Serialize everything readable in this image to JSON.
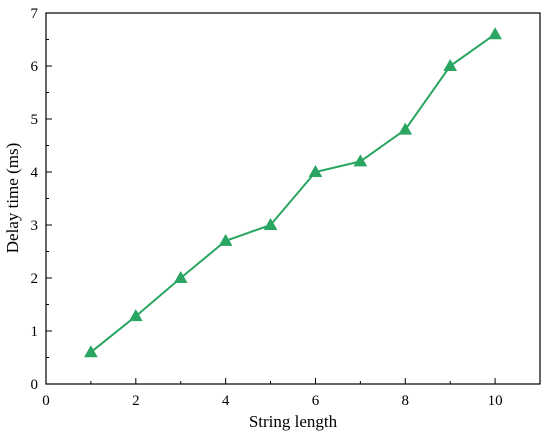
{
  "chart_data": {
    "type": "line",
    "xlabel": "String length",
    "ylabel": "Delay time (ms)",
    "xlim": [
      0,
      11
    ],
    "ylim": [
      0,
      7
    ],
    "xticks": [
      0,
      2,
      4,
      6,
      8,
      10
    ],
    "yticks": [
      0,
      1,
      2,
      3,
      4,
      5,
      6,
      7
    ],
    "grid": false,
    "series": [
      {
        "color": "#2aa562",
        "marker": "triangle",
        "x": [
          1,
          2,
          3,
          4,
          5,
          6,
          7,
          8,
          9,
          10
        ],
        "y": [
          0.6,
          1.28,
          2.0,
          2.7,
          3.0,
          4.0,
          4.2,
          4.8,
          6.0,
          6.6
        ]
      }
    ]
  }
}
